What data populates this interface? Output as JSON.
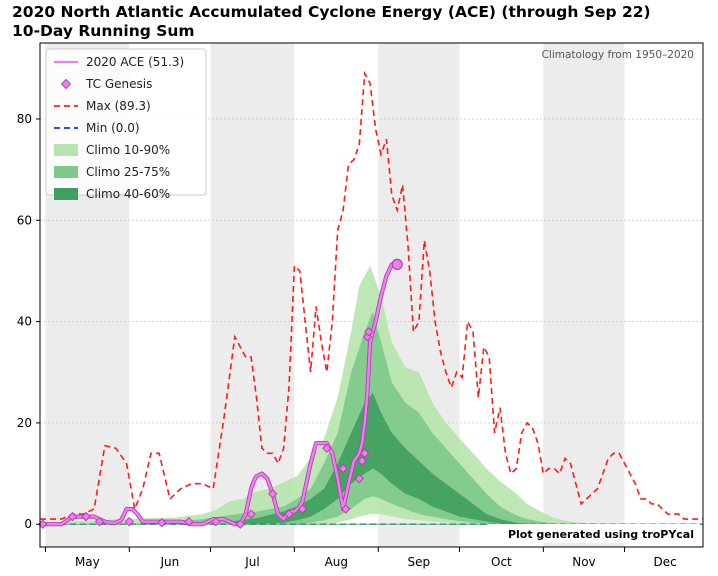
{
  "title": {
    "line1": "2020 North Atlantic Accumulated Cyclone Energy (ACE) (through Sep 22)",
    "line2": "10-Day Running Sum"
  },
  "climatology_note": "Climatology from 1950–2020",
  "credit": "Plot generated using troPYcal",
  "colors": {
    "ace": "#ee7fee",
    "ace_dark": "#b441b4",
    "max": "#ff1b1b",
    "min": "#1530e0",
    "climo_10_90": "#b7e4ae",
    "climo_25_75": "#7cc98a",
    "climo_40_60": "#3f9f5e",
    "month_shade": "#ececec"
  },
  "legend": [
    {
      "label": "2020 ACE (51.3)",
      "kind": "line-solid",
      "color": "#ee7fee"
    },
    {
      "label": "TC Genesis",
      "kind": "marker",
      "color": "#ee7fee"
    },
    {
      "label": "Max (89.3)",
      "kind": "line-dashed",
      "color": "#ff1b1b"
    },
    {
      "label": "Min (0.0)",
      "kind": "line-dashed",
      "color": "#1530e0"
    },
    {
      "label": "Climo 10-90%",
      "kind": "patch",
      "color": "#b7e4ae"
    },
    {
      "label": "Climo 25-75%",
      "kind": "patch",
      "color": "#7cc98a"
    },
    {
      "label": "Climo 40-60%",
      "kind": "patch",
      "color": "#3f9f5e"
    }
  ],
  "chart_data": {
    "type": "area",
    "title": "2020 North Atlantic Accumulated Cyclone Energy (ACE) (through Sep 22)",
    "subtitle": "10-Day Running Sum",
    "xlabel": "",
    "ylabel": "",
    "x_tick_labels": [
      "May",
      "Jun",
      "Jul",
      "Aug",
      "Sep",
      "Oct",
      "Nov",
      "Dec"
    ],
    "y_ticks": [
      0,
      20,
      40,
      60,
      80
    ],
    "xlim": [
      120,
      365
    ],
    "ylim": [
      -4.5,
      95
    ],
    "grid": true,
    "legend_position": "top-left",
    "series": [
      {
        "name": "Max (89.3)",
        "style": "dashed",
        "x": [
          120,
          124,
          128,
          132,
          136,
          140,
          144,
          148,
          152,
          155,
          158,
          161,
          164,
          168,
          172,
          176,
          180,
          184,
          188,
          192,
          196,
          198,
          200,
          202,
          204,
          206,
          208,
          210,
          212,
          214,
          216,
          218,
          220,
          222,
          224,
          226,
          228,
          230,
          232,
          234,
          236,
          238,
          240,
          242,
          244,
          246,
          248,
          250,
          252,
          254,
          256,
          258,
          260,
          262,
          264,
          266,
          268,
          270,
          272,
          274,
          276,
          278,
          280,
          282,
          284,
          286,
          288,
          290,
          292,
          294,
          296,
          298,
          300,
          302,
          304,
          306,
          308,
          310,
          312,
          314,
          316,
          318,
          320,
          322,
          324,
          326,
          328,
          330,
          332,
          334,
          336,
          338,
          340,
          342,
          344,
          346,
          348,
          350,
          352,
          354,
          356,
          358,
          360,
          362,
          365
        ],
        "y": [
          1,
          1,
          1,
          2,
          2,
          3,
          15.5,
          15,
          12,
          3,
          7,
          14,
          14,
          5,
          7,
          8,
          8,
          7,
          21,
          37,
          33,
          33,
          25,
          15,
          14,
          14,
          12,
          15,
          27,
          51,
          50,
          40,
          30,
          43,
          36,
          30,
          40,
          58,
          62,
          71,
          72,
          75,
          89,
          87,
          78,
          73,
          76,
          65,
          62,
          67,
          55,
          38,
          40,
          56,
          50,
          40,
          34,
          30,
          27,
          30,
          29,
          40,
          38,
          25,
          35,
          33,
          18,
          23,
          14,
          10,
          11,
          18,
          20,
          19,
          16,
          10,
          11,
          11,
          10,
          13,
          12,
          8,
          4,
          5,
          6,
          7,
          10,
          13,
          14,
          14,
          12,
          10,
          8,
          5,
          5,
          4,
          4,
          3,
          2,
          2,
          2,
          1,
          1,
          1,
          1
        ]
      },
      {
        "name": "Min (0.0)",
        "style": "dashed",
        "y_constant": 0
      },
      {
        "name": "Climo 10-90%",
        "x": [
          120,
          130,
          140,
          150,
          160,
          170,
          180,
          185,
          190,
          195,
          200,
          205,
          210,
          215,
          220,
          225,
          230,
          235,
          238,
          242,
          246,
          250,
          255,
          260,
          265,
          270,
          275,
          280,
          285,
          290,
          295,
          300,
          305,
          310,
          315,
          320,
          330,
          345,
          365
        ],
        "low": [
          0,
          0,
          0,
          0,
          0,
          0,
          0,
          0,
          0,
          0,
          0,
          0,
          0,
          0,
          0,
          0,
          0.3,
          1,
          1.5,
          2,
          2,
          1.5,
          1,
          0.8,
          0.5,
          0.3,
          0.1,
          0,
          0,
          0,
          0,
          0,
          0,
          0,
          0,
          0,
          0,
          0,
          0
        ],
        "high": [
          0.3,
          0.5,
          0.8,
          1,
          1.2,
          1.3,
          2,
          2.8,
          4.5,
          5,
          6.5,
          7,
          8.3,
          9.5,
          13,
          17,
          25,
          38,
          47,
          51,
          45,
          36,
          31,
          30,
          24,
          20,
          17,
          14,
          11,
          8.5,
          6.5,
          4,
          2.5,
          1.2,
          0.6,
          0.3,
          0.1,
          0,
          0
        ]
      },
      {
        "name": "Climo 25-75%",
        "x": [
          160,
          170,
          180,
          190,
          200,
          210,
          215,
          220,
          225,
          230,
          235,
          240,
          243,
          246,
          250,
          255,
          260,
          265,
          270,
          275,
          280,
          285,
          290,
          295,
          300,
          305,
          310
        ],
        "low": [
          0,
          0,
          0,
          0,
          0,
          0,
          0,
          0.3,
          0.8,
          1.5,
          3,
          5,
          5.5,
          5,
          4,
          3,
          2,
          1.5,
          1,
          0.6,
          0.3,
          0.1,
          0,
          0,
          0,
          0,
          0
        ],
        "high": [
          0.3,
          0.5,
          1,
          1.8,
          2.5,
          3.5,
          5,
          7,
          12,
          18,
          30,
          38,
          42,
          36,
          28,
          24,
          22,
          18,
          15,
          12,
          9,
          6,
          3.5,
          2,
          1,
          0.5,
          0.1
        ]
      },
      {
        "name": "Climo 40-60%",
        "x": [
          190,
          200,
          210,
          215,
          220,
          225,
          230,
          235,
          240,
          243,
          246,
          250,
          255,
          260,
          265,
          270,
          275,
          280,
          285,
          290,
          295,
          300
        ],
        "low": [
          0,
          0,
          0.3,
          0.8,
          1.5,
          3,
          5,
          8,
          10,
          11,
          10,
          8,
          6,
          5,
          3.5,
          2.5,
          1.5,
          1,
          0.5,
          0.2,
          0,
          0
        ],
        "high": [
          0.5,
          1.2,
          2.5,
          3.5,
          5,
          7,
          12,
          18,
          24,
          26,
          22,
          18,
          15,
          12.5,
          10,
          8,
          6,
          4,
          2,
          1,
          0.4,
          0
        ]
      },
      {
        "name": "2020 ACE (51.3)",
        "style": "solid",
        "x": [
          120,
          124,
          128,
          132,
          136,
          138,
          140,
          142,
          144,
          146,
          148,
          150,
          152,
          154,
          156,
          158,
          160,
          162,
          164,
          166,
          168,
          170,
          172,
          174,
          176,
          178,
          180,
          182,
          184,
          186,
          188,
          190,
          192,
          194,
          196,
          198,
          199,
          200,
          202,
          204,
          206,
          208,
          210,
          212,
          214,
          216,
          217,
          218,
          220,
          222,
          224,
          226,
          228,
          230,
          232,
          234,
          236,
          238,
          239,
          240,
          241,
          242,
          243,
          244,
          246,
          248,
          250,
          252
        ],
        "y": [
          0,
          0,
          0,
          1.5,
          1.5,
          1.5,
          1.5,
          1,
          0.5,
          0.3,
          0.3,
          0.8,
          3,
          3,
          2,
          0.5,
          0.5,
          0.5,
          0.5,
          0.5,
          0.5,
          0.5,
          0.5,
          0.3,
          0,
          0,
          0,
          0.5,
          1,
          1,
          1,
          0.5,
          0,
          0,
          2,
          7,
          8.5,
          9.5,
          10,
          9,
          6,
          2,
          1,
          2.5,
          2.5,
          3.5,
          4.5,
          7,
          12,
          16,
          16,
          16,
          14,
          9,
          3,
          8,
          12.5,
          14,
          16,
          20,
          26,
          36,
          38,
          40,
          45,
          49,
          51.3,
          51.3
        ]
      },
      {
        "name": "TC Genesis",
        "style": "marker",
        "x": [
          121,
          132,
          137,
          142,
          153,
          165,
          175,
          185,
          194,
          198,
          206,
          212,
          217,
          226,
          232,
          233,
          238,
          239,
          240,
          241,
          241.5,
          252
        ],
        "y": [
          0,
          1.5,
          1.5,
          0.5,
          0.5,
          0.3,
          0.5,
          0.5,
          0,
          2,
          6,
          2,
          3,
          15,
          11,
          3,
          9,
          12.5,
          14,
          37,
          38,
          51.3
        ]
      }
    ]
  }
}
